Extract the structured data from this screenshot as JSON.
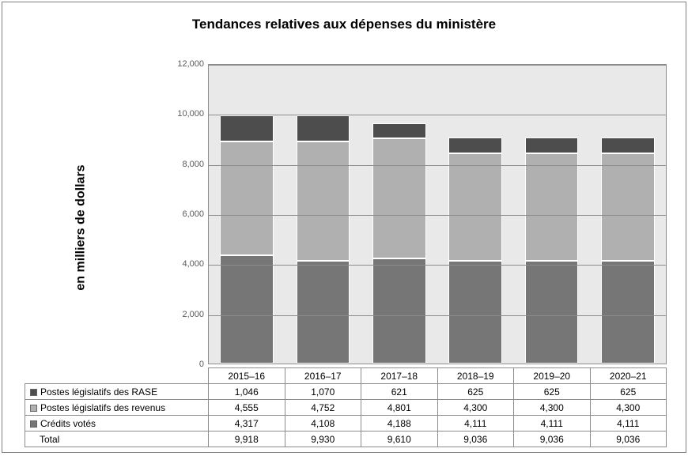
{
  "chart": {
    "type": "stacked-bar",
    "title": "Tendances relatives aux dépenses du ministère",
    "title_fontsize": 17,
    "ylabel": "en milliers de dollars",
    "ylabel_fontsize": 16,
    "categories": [
      "2015–16",
      "2016–17",
      "2017–18",
      "2018–19",
      "2019–20",
      "2020–21"
    ],
    "series": [
      {
        "key": "credits",
        "label": "Crédits votés",
        "color": "#767676",
        "values": [
          4317,
          4108,
          4188,
          4111,
          4111,
          4111
        ]
      },
      {
        "key": "revenus",
        "label": "Postes législatifs des revenus",
        "color": "#b0b0b0",
        "values": [
          4555,
          4752,
          4801,
          4300,
          4300,
          4300
        ]
      },
      {
        "key": "rase",
        "label": "Postes législatifs des RASE",
        "color": "#4d4d4d",
        "values": [
          1046,
          1070,
          621,
          625,
          625,
          625
        ]
      }
    ],
    "legend_order": [
      "rase",
      "revenus",
      "credits"
    ],
    "totals_label": "Total",
    "totals": [
      "9,918",
      "9,930",
      "9,610",
      "9,036",
      "9,036",
      "9,036"
    ],
    "formatted": {
      "rase": [
        "1,046",
        "1,070",
        "621",
        "625",
        "625",
        "625"
      ],
      "revenus": [
        "4,555",
        "4,752",
        "4,801",
        "4,300",
        "4,300",
        "4,300"
      ],
      "credits": [
        "4,317",
        "4,108",
        "4,188",
        "4,111",
        "4,111",
        "4,111"
      ]
    },
    "ylim": [
      0,
      12000
    ],
    "ytick_step": 2000,
    "yticks": [
      "0",
      "2,000",
      "4,000",
      "6,000",
      "8,000",
      "10,000",
      "12,000"
    ],
    "plot_background": "#e9e9e9",
    "frame_background": "#ffffff",
    "grid_color": "#8c8c8c",
    "axis_color": "#8c8c8c",
    "tick_fontsize": 11,
    "table_fontsize": 12,
    "bar_width": 0.7
  }
}
